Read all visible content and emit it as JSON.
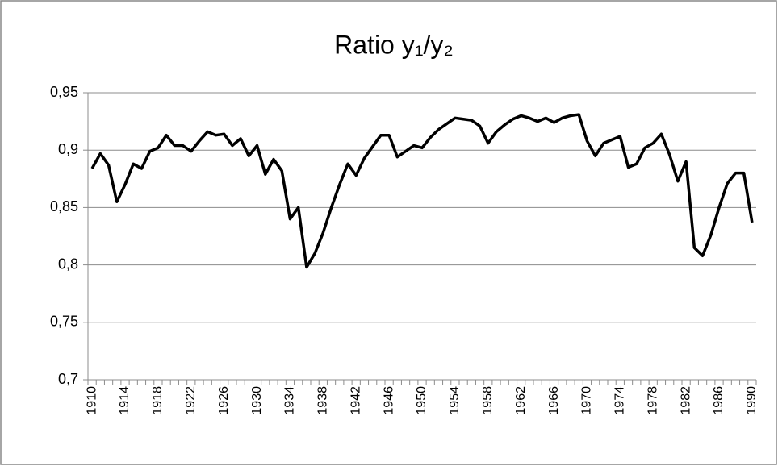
{
  "chart_data": {
    "type": "line",
    "title": "Ratio y₁/y₂",
    "x": [
      1910,
      1911,
      1912,
      1913,
      1914,
      1915,
      1916,
      1917,
      1918,
      1919,
      1920,
      1921,
      1922,
      1923,
      1924,
      1925,
      1926,
      1927,
      1928,
      1929,
      1930,
      1931,
      1932,
      1933,
      1934,
      1935,
      1936,
      1937,
      1938,
      1939,
      1940,
      1941,
      1942,
      1943,
      1944,
      1945,
      1946,
      1947,
      1948,
      1949,
      1950,
      1951,
      1952,
      1953,
      1954,
      1955,
      1956,
      1957,
      1958,
      1959,
      1960,
      1961,
      1962,
      1963,
      1964,
      1965,
      1966,
      1967,
      1968,
      1969,
      1970,
      1971,
      1972,
      1973,
      1974,
      1975,
      1976,
      1977,
      1978,
      1979,
      1980,
      1981,
      1982,
      1983,
      1984,
      1985,
      1986,
      1987,
      1988,
      1989,
      1990
    ],
    "series": [
      {
        "color": "#000000",
        "values": [
          0.884,
          0.897,
          0.887,
          0.855,
          0.87,
          0.888,
          0.884,
          0.899,
          0.902,
          0.913,
          0.904,
          0.904,
          0.899,
          0.908,
          0.916,
          0.913,
          0.914,
          0.904,
          0.91,
          0.895,
          0.904,
          0.879,
          0.892,
          0.882,
          0.84,
          0.85,
          0.798,
          0.81,
          0.828,
          0.85,
          0.87,
          0.888,
          0.878,
          0.893,
          0.903,
          0.913,
          0.913,
          0.894,
          0.899,
          0.904,
          0.902,
          0.911,
          0.918,
          0.923,
          0.928,
          0.927,
          0.926,
          0.921,
          0.906,
          0.916,
          0.922,
          0.927,
          0.93,
          0.928,
          0.925,
          0.928,
          0.924,
          0.928,
          0.93,
          0.931,
          0.908,
          0.895,
          0.906,
          0.909,
          0.912,
          0.885,
          0.888,
          0.902,
          0.906,
          0.914,
          0.896,
          0.873,
          0.89,
          0.815,
          0.808,
          0.826,
          0.85,
          0.871,
          0.88,
          0.88,
          0.837
        ]
      }
    ],
    "xlim": [
      1909.5,
      1990.5
    ],
    "xticks": [
      1910,
      1914,
      1918,
      1922,
      1926,
      1930,
      1934,
      1938,
      1942,
      1946,
      1950,
      1954,
      1958,
      1962,
      1966,
      1970,
      1974,
      1978,
      1982,
      1986,
      1990
    ],
    "ylim": [
      0.7,
      0.95
    ],
    "yticks": [
      {
        "value": 0.7,
        "label": "0,7"
      },
      {
        "value": 0.75,
        "label": "0,75"
      },
      {
        "value": 0.8,
        "label": "0,8"
      },
      {
        "value": 0.85,
        "label": "0,85"
      },
      {
        "value": 0.9,
        "label": "0,9"
      },
      {
        "value": 0.95,
        "label": "0,95"
      }
    ],
    "grid": true
  }
}
